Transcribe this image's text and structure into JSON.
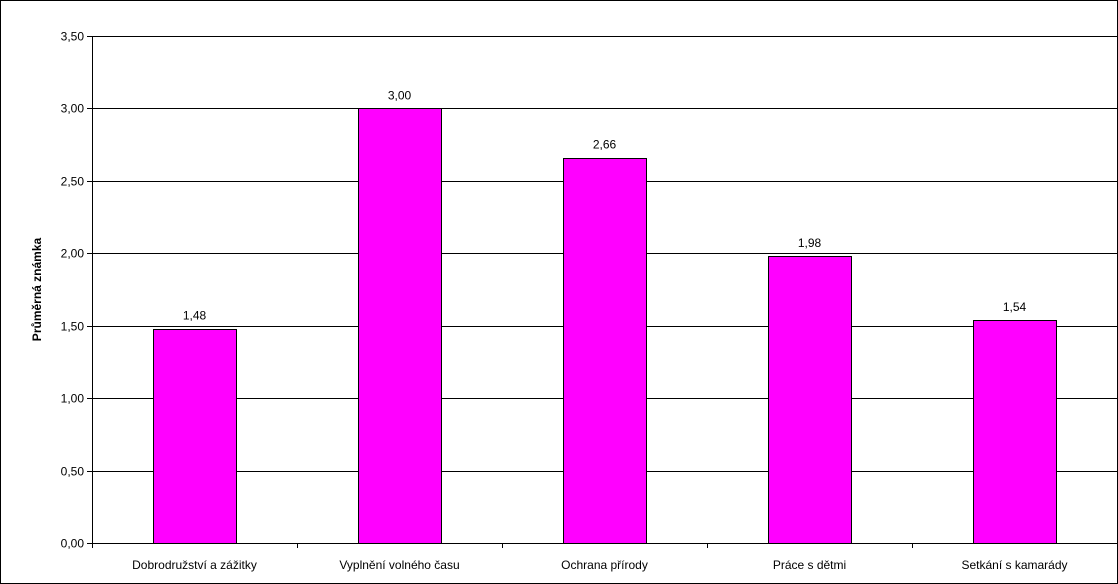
{
  "chart_data": {
    "type": "bar",
    "title": "",
    "xlabel": "",
    "ylabel": "Průměrná známka",
    "categories": [
      "Dobrodružství a zážitky",
      "Vyplnění volného času",
      "Ochrana přírody",
      "Práce s dětmi",
      "Setkání s kamarády"
    ],
    "values": [
      1.48,
      3.0,
      2.66,
      1.98,
      1.54
    ],
    "value_labels": [
      "1,48",
      "3,00",
      "2,66",
      "1,98",
      "1,54"
    ],
    "ylim": [
      0,
      3.5
    ],
    "yticks": [
      0,
      0.5,
      1.0,
      1.5,
      2.0,
      2.5,
      3.0,
      3.5
    ],
    "ytick_labels": [
      "0,00",
      "0,50",
      "1,00",
      "1,50",
      "2,00",
      "2,50",
      "3,00",
      "3,50"
    ],
    "grid": true,
    "legend": "none",
    "bar_color": "#FF00FF",
    "bar_edge_color": "#000000"
  }
}
